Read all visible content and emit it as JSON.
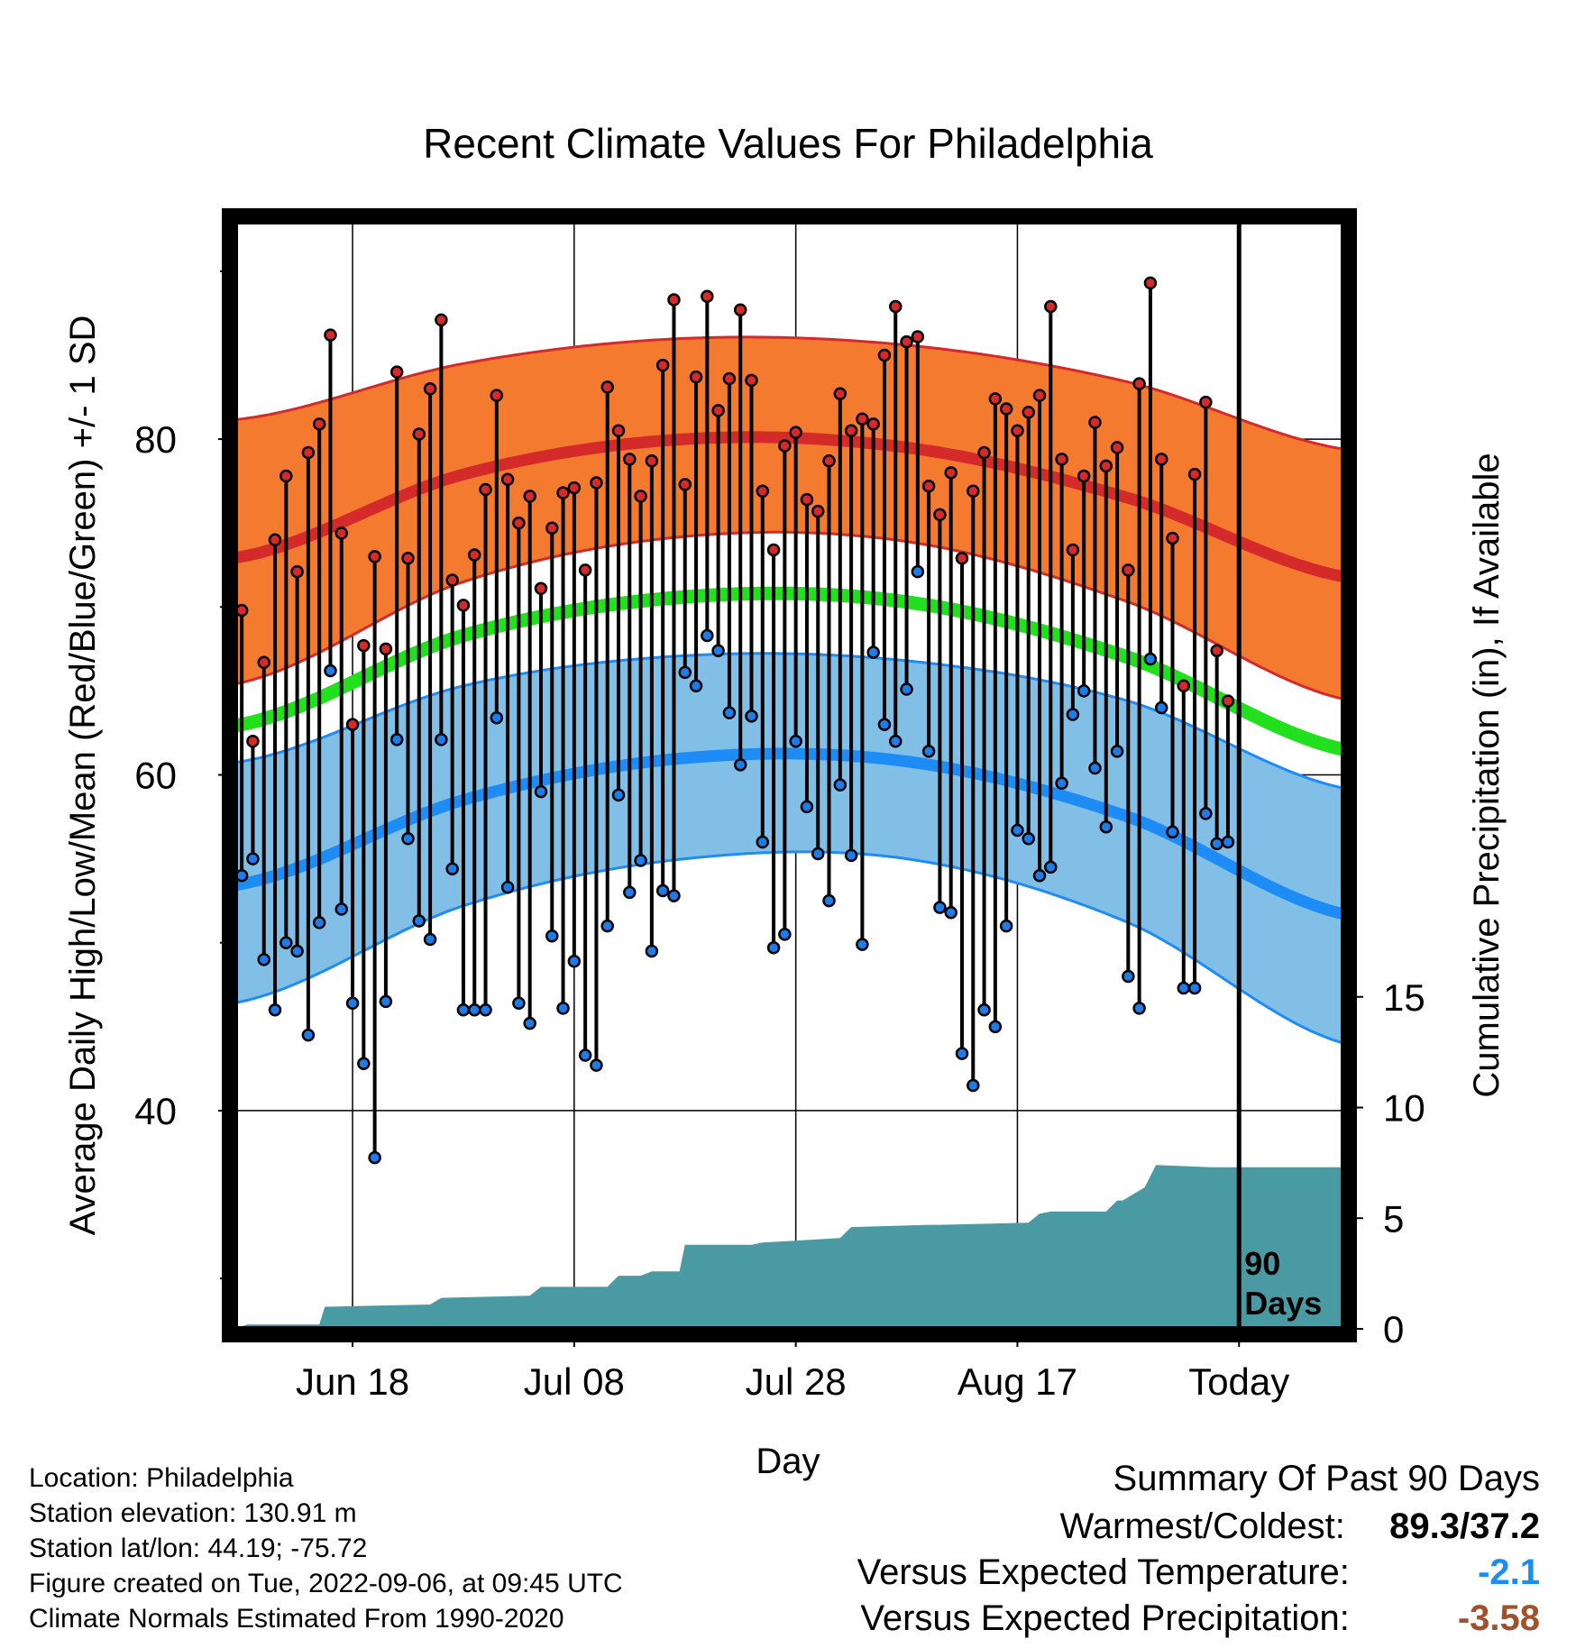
{
  "chart_data": {
    "type": "line",
    "title": "Recent Climate Values For Philadelphia",
    "xlabel": "Day",
    "ylabel": "Average Daily High/Low/Mean (Red/Blue/Green) +/- 1 SD",
    "ylabel_right": "Cumulative Precipitation (in), If Available",
    "x_tick_labels": [
      "Jun 18",
      "Jul 08",
      "Jul 28",
      "Aug 17",
      "Today"
    ],
    "x_tick_days": [
      10,
      30,
      50,
      70,
      90
    ],
    "xlim": [
      -0.5,
      99.5
    ],
    "ylim": [
      27,
      93
    ],
    "y_ticks": [
      40,
      60,
      80
    ],
    "y_minor_ticks": [
      30,
      50,
      70,
      90
    ],
    "y2_ticks": [
      0,
      5,
      10,
      15
    ],
    "today_day": 90,
    "today_annotation": "90\nDays",
    "normals": {
      "day": [
        0,
        20,
        40,
        60,
        80,
        99.5
      ],
      "high_mean": [
        73.0,
        77.9,
        80.0,
        79.5,
        76.5,
        71.8
      ],
      "high_upper": [
        81.2,
        84.5,
        86.0,
        85.6,
        83.4,
        79.4
      ],
      "high_lower": [
        65.5,
        71.5,
        74.2,
        73.9,
        70.3,
        64.5
      ],
      "low_mean": [
        53.5,
        58.5,
        61.0,
        60.8,
        57.5,
        51.7
      ],
      "low_upper": [
        60.8,
        65.3,
        67.1,
        66.8,
        64.4,
        59.2
      ],
      "low_lower": [
        46.5,
        52.2,
        55.0,
        55.0,
        51.2,
        44.0
      ],
      "overall_mean": [
        63.0,
        68.3,
        70.6,
        70.3,
        67.0,
        61.5
      ]
    },
    "series": [
      {
        "name": "High",
        "day_start": 0,
        "values": [
          69.8,
          62.0,
          66.7,
          74.0,
          77.8,
          72.1,
          79.2,
          80.9,
          86.2,
          74.4,
          63.0,
          67.7,
          73.0,
          67.5,
          84.0,
          72.9,
          80.3,
          83.0,
          87.1,
          71.6,
          70.1,
          73.1,
          77.0,
          82.6,
          77.6,
          75.0,
          76.6,
          71.1,
          74.7,
          76.8,
          77.1,
          72.2,
          77.4,
          83.1,
          80.5,
          78.8,
          76.6,
          78.7,
          84.4,
          88.3,
          77.3,
          83.7,
          88.5,
          81.7,
          83.6,
          87.7,
          83.5,
          76.9,
          73.4,
          79.6,
          80.4,
          76.4,
          75.7,
          78.7,
          82.7,
          80.5,
          81.2,
          80.9,
          85.0,
          87.9,
          85.8,
          86.1,
          77.2,
          75.5,
          78.0,
          72.9,
          76.9,
          79.2,
          82.4,
          81.8,
          80.5,
          81.6,
          82.6,
          87.9,
          78.8,
          73.4,
          77.8,
          81.0,
          78.4,
          79.5,
          72.2,
          83.3,
          89.3,
          78.8,
          74.1,
          65.3,
          77.9,
          82.2,
          67.4,
          64.4
        ]
      },
      {
        "name": "Low",
        "day_start": 0,
        "values": [
          54.0,
          55.0,
          49.0,
          46.0,
          50.0,
          49.5,
          44.5,
          51.2,
          66.2,
          52.0,
          46.4,
          42.8,
          37.2,
          46.5,
          62.1,
          56.2,
          51.3,
          50.2,
          62.1,
          54.4,
          46.0,
          46.0,
          46.0,
          63.4,
          53.3,
          46.4,
          45.2,
          59.0,
          50.4,
          46.1,
          48.9,
          43.3,
          42.7,
          51.0,
          58.8,
          53.0,
          54.9,
          49.5,
          53.1,
          52.8,
          66.1,
          65.3,
          68.3,
          67.4,
          63.7,
          60.6,
          63.5,
          56.0,
          49.7,
          50.5,
          62.0,
          58.1,
          55.3,
          52.5,
          59.4,
          55.2,
          49.9,
          67.3,
          63.0,
          62.0,
          65.1,
          72.1,
          61.4,
          52.1,
          51.8,
          43.4,
          41.5,
          46.0,
          45.0,
          51.0,
          56.7,
          56.2,
          54.0,
          54.5,
          59.5,
          63.6,
          65.0,
          60.4,
          56.9,
          61.4,
          48.0,
          46.1,
          66.9,
          64.0,
          56.6,
          47.3,
          47.3,
          57.7,
          55.9,
          56.0
        ]
      }
    ],
    "precipitation": {
      "day": [
        0,
        0.5,
        7.0,
        7.5,
        17.0,
        18.0,
        26.0,
        27.0,
        33.0,
        34.0,
        36.0,
        37.0,
        39.5,
        40.0,
        46.0,
        47.0,
        54.0,
        55.0,
        62.0,
        63.0,
        71.0,
        72.0,
        73.0,
        74.0,
        78.0,
        79.0,
        79.5,
        80.5,
        81.5,
        82.5,
        87.5,
        88.5,
        99.5
      ],
      "cumulative": [
        0.1,
        0.2,
        0.2,
        1.0,
        1.1,
        1.4,
        1.5,
        1.9,
        1.9,
        2.4,
        2.4,
        2.6,
        2.6,
        3.8,
        3.8,
        3.9,
        4.1,
        4.6,
        4.7,
        4.7,
        4.8,
        5.2,
        5.3,
        5.3,
        5.3,
        5.8,
        5.8,
        6.1,
        6.4,
        7.4,
        7.3,
        7.3,
        7.3
      ]
    },
    "legend": "none",
    "grid": true
  },
  "info": {
    "location": "Location: Philadelphia",
    "elevation": "Station elevation: 130.91 m",
    "latlon": "Station lat/lon: 44.19; -75.72",
    "created": "Figure created on Tue, 2022-09-06, at 09:45 UTC",
    "normals": "Climate Normals Estimated From 1990-2020"
  },
  "summary": {
    "title": "Summary Of Past 90 Days",
    "warmest_label": "Warmest/Coldest:",
    "warmest_value": "89.3/37.2",
    "temp_label": "Versus Expected Temperature:",
    "temp_value": "-2.1",
    "precip_label": "Versus Expected Precipitation:",
    "precip_value": "-3.58"
  },
  "colors": {
    "high_band": "#f47a30",
    "high_line": "#d42a2a",
    "low_band": "#82bfe7",
    "low_line": "#1e8cf5",
    "mean_line": "#22e01e",
    "precip_fill": "#4a9aa3",
    "high_dot": "#d42a2a",
    "low_dot": "#1e7ce8",
    "temp_value": "#1e8cf5",
    "precip_value": "#a0522d"
  }
}
